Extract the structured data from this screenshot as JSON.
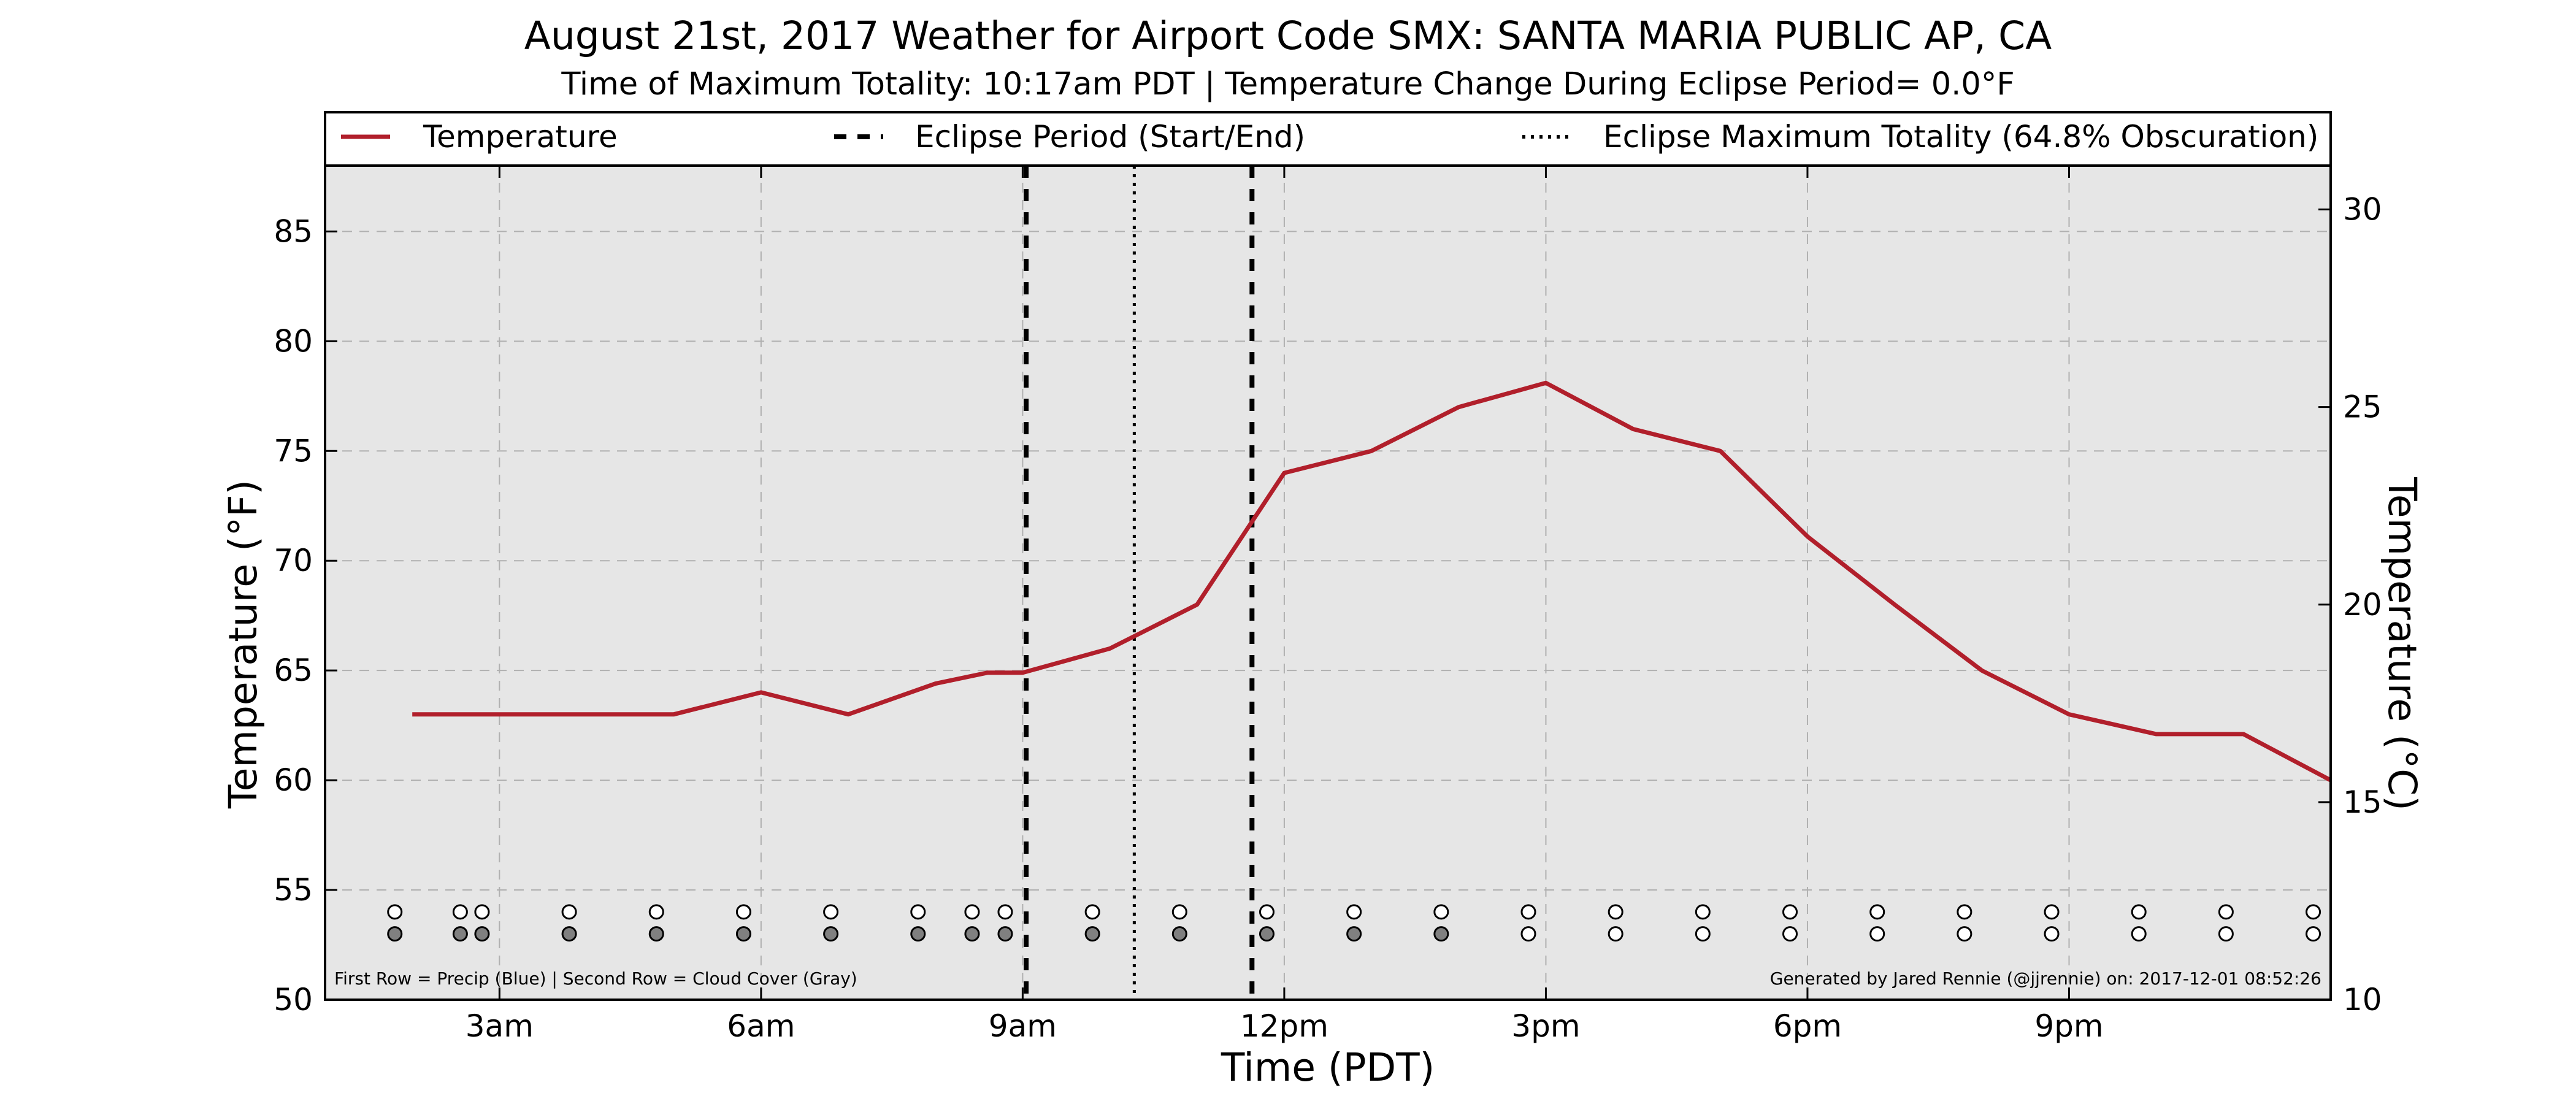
{
  "chart_data": {
    "type": "line",
    "title": "August 21st, 2017 Weather for Airport Code SMX: SANTA MARIA PUBLIC AP, CA",
    "subtitle": "Time of Maximum Totality: 10:17am PDT | Temperature Change During Eclipse Period= 0.0°F",
    "xlabel": "Time (PDT)",
    "ylabel": "Temperature (°F)",
    "ylabel_right": "Temperature (°C)",
    "xlim": [
      1.0,
      24.0
    ],
    "ylim": [
      50,
      88
    ],
    "ylim_right": [
      10,
      31.11
    ],
    "x_ticks": [
      {
        "value": 3,
        "label": "3am"
      },
      {
        "value": 6,
        "label": "6am"
      },
      {
        "value": 9,
        "label": "9am"
      },
      {
        "value": 12,
        "label": "12pm"
      },
      {
        "value": 15,
        "label": "3pm"
      },
      {
        "value": 18,
        "label": "6pm"
      },
      {
        "value": 21,
        "label": "9pm"
      }
    ],
    "y_ticks": [
      50,
      55,
      60,
      65,
      70,
      75,
      80,
      85
    ],
    "y_ticks_right": [
      10,
      15,
      20,
      25,
      30
    ],
    "grid": true,
    "legend_position": "top",
    "legend": [
      {
        "label": "Temperature",
        "style": "solid"
      },
      {
        "label": "Eclipse Period (Start/End)",
        "style": "dashed"
      },
      {
        "label": "Eclipse Maximum Totality (64.8% Obscuration)",
        "style": "dotted"
      }
    ],
    "series": [
      {
        "name": "Temperature",
        "x": [
          2.0,
          3.0,
          4.0,
          5.0,
          6.0,
          7.0,
          8.0,
          8.6,
          9.0,
          10.0,
          11.0,
          12.0,
          13.0,
          14.0,
          15.0,
          16.0,
          17.0,
          18.0,
          19.0,
          20.0,
          21.0,
          22.0,
          23.0,
          24.0
        ],
        "y": [
          63,
          63,
          63,
          63,
          64,
          63,
          64.4,
          64.9,
          64.9,
          66,
          68,
          74,
          75,
          77,
          78.1,
          76,
          75,
          71.1,
          68,
          65,
          63,
          62.1,
          62.1,
          60
        ]
      }
    ],
    "eclipse_start": 9.04,
    "eclipse_end": 11.63,
    "eclipse_max": 10.28,
    "precip_row": {
      "y": 54,
      "x": [
        1.8,
        2.55,
        2.8,
        3.8,
        4.8,
        5.8,
        6.8,
        7.8,
        8.42,
        8.8,
        9.8,
        10.8,
        11.8,
        12.8,
        13.8,
        14.8,
        15.8,
        16.8,
        17.8,
        18.8,
        19.8,
        20.8,
        21.8,
        22.8,
        23.8
      ],
      "color": "#ffffff"
    },
    "cloud_row": {
      "y": 53,
      "x": [
        1.8,
        2.55,
        2.8,
        3.8,
        4.8,
        5.8,
        6.8,
        7.8,
        8.42,
        8.8,
        9.8,
        10.8,
        11.8,
        12.8,
        13.8,
        14.8,
        15.8,
        16.8,
        17.8,
        18.8,
        19.8,
        20.8,
        21.8,
        22.8,
        23.8
      ],
      "fill": [
        "#808080",
        "#808080",
        "#808080",
        "#808080",
        "#808080",
        "#808080",
        "#808080",
        "#808080",
        "#808080",
        "#808080",
        "#808080",
        "#808080",
        "#808080",
        "#808080",
        "#808080",
        "#ffffff",
        "#ffffff",
        "#ffffff",
        "#ffffff",
        "#ffffff",
        "#ffffff",
        "#ffffff",
        "#ffffff",
        "#ffffff",
        "#ffffff"
      ]
    },
    "footnote_left": "First Row = Precip (Blue) | Second Row = Cloud Cover (Gray)",
    "footnote_right": "Generated by Jared Rennie (@jjrennie) on: 2017-12-01 08:52:26",
    "colors": {
      "line": "#b11f2b",
      "plot_background": "#e6e6e6",
      "grid": "#b0b0b0",
      "eclipse_lines": "#000000"
    }
  }
}
